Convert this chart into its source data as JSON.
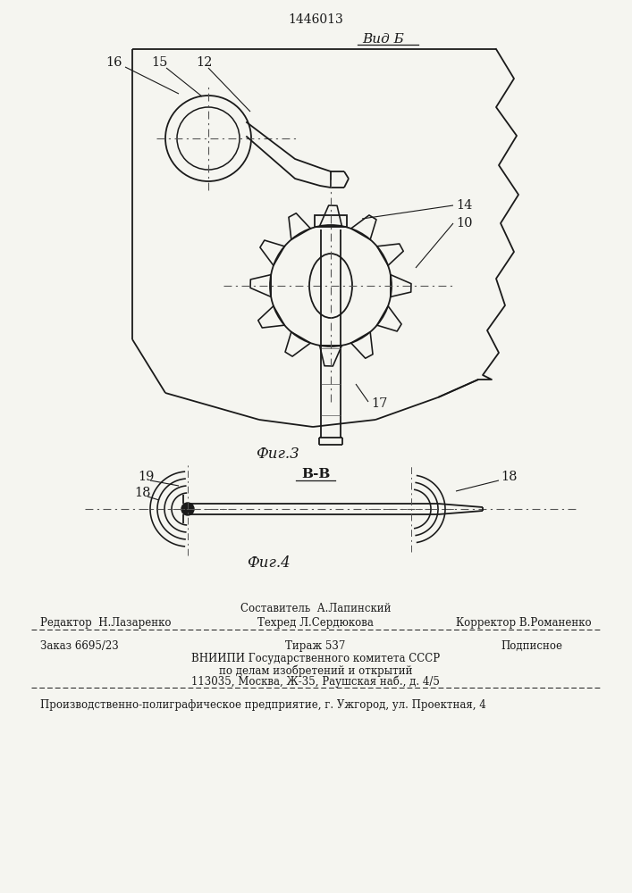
{
  "patent_number": "1446013",
  "fig3_label": "Вид Б",
  "fig3_caption": "Фиг.3",
  "fig4_label": "В-В",
  "fig4_caption": "Фиг.4",
  "footer": {
    "sostavitel": "Составитель  А.Лапинский",
    "redaktor_label": "Редактор  Н.Лазаренко",
    "tehred": "Техред Л.Сердюкова",
    "korrektor": "Корректор В.Романенко",
    "zakaz": "Заказ 6695/23",
    "tirazh": "Тираж 537",
    "podpisnoe": "Подписное",
    "vnipi_line1": "ВНИИПИ Государственного комитета СССР",
    "vnipi_line2": "по делам изобретений и открытий",
    "vnipi_line3": "113035, Москва, Ж-35, Раушская наб., д. 4/5",
    "factory": "Производственно-полиграфическое предприятие, г. Ужгород, ул. Проектная, 4"
  },
  "line_color": "#1a1a1a",
  "bg_color": "#f5f5f0",
  "dash_color": "#555555"
}
